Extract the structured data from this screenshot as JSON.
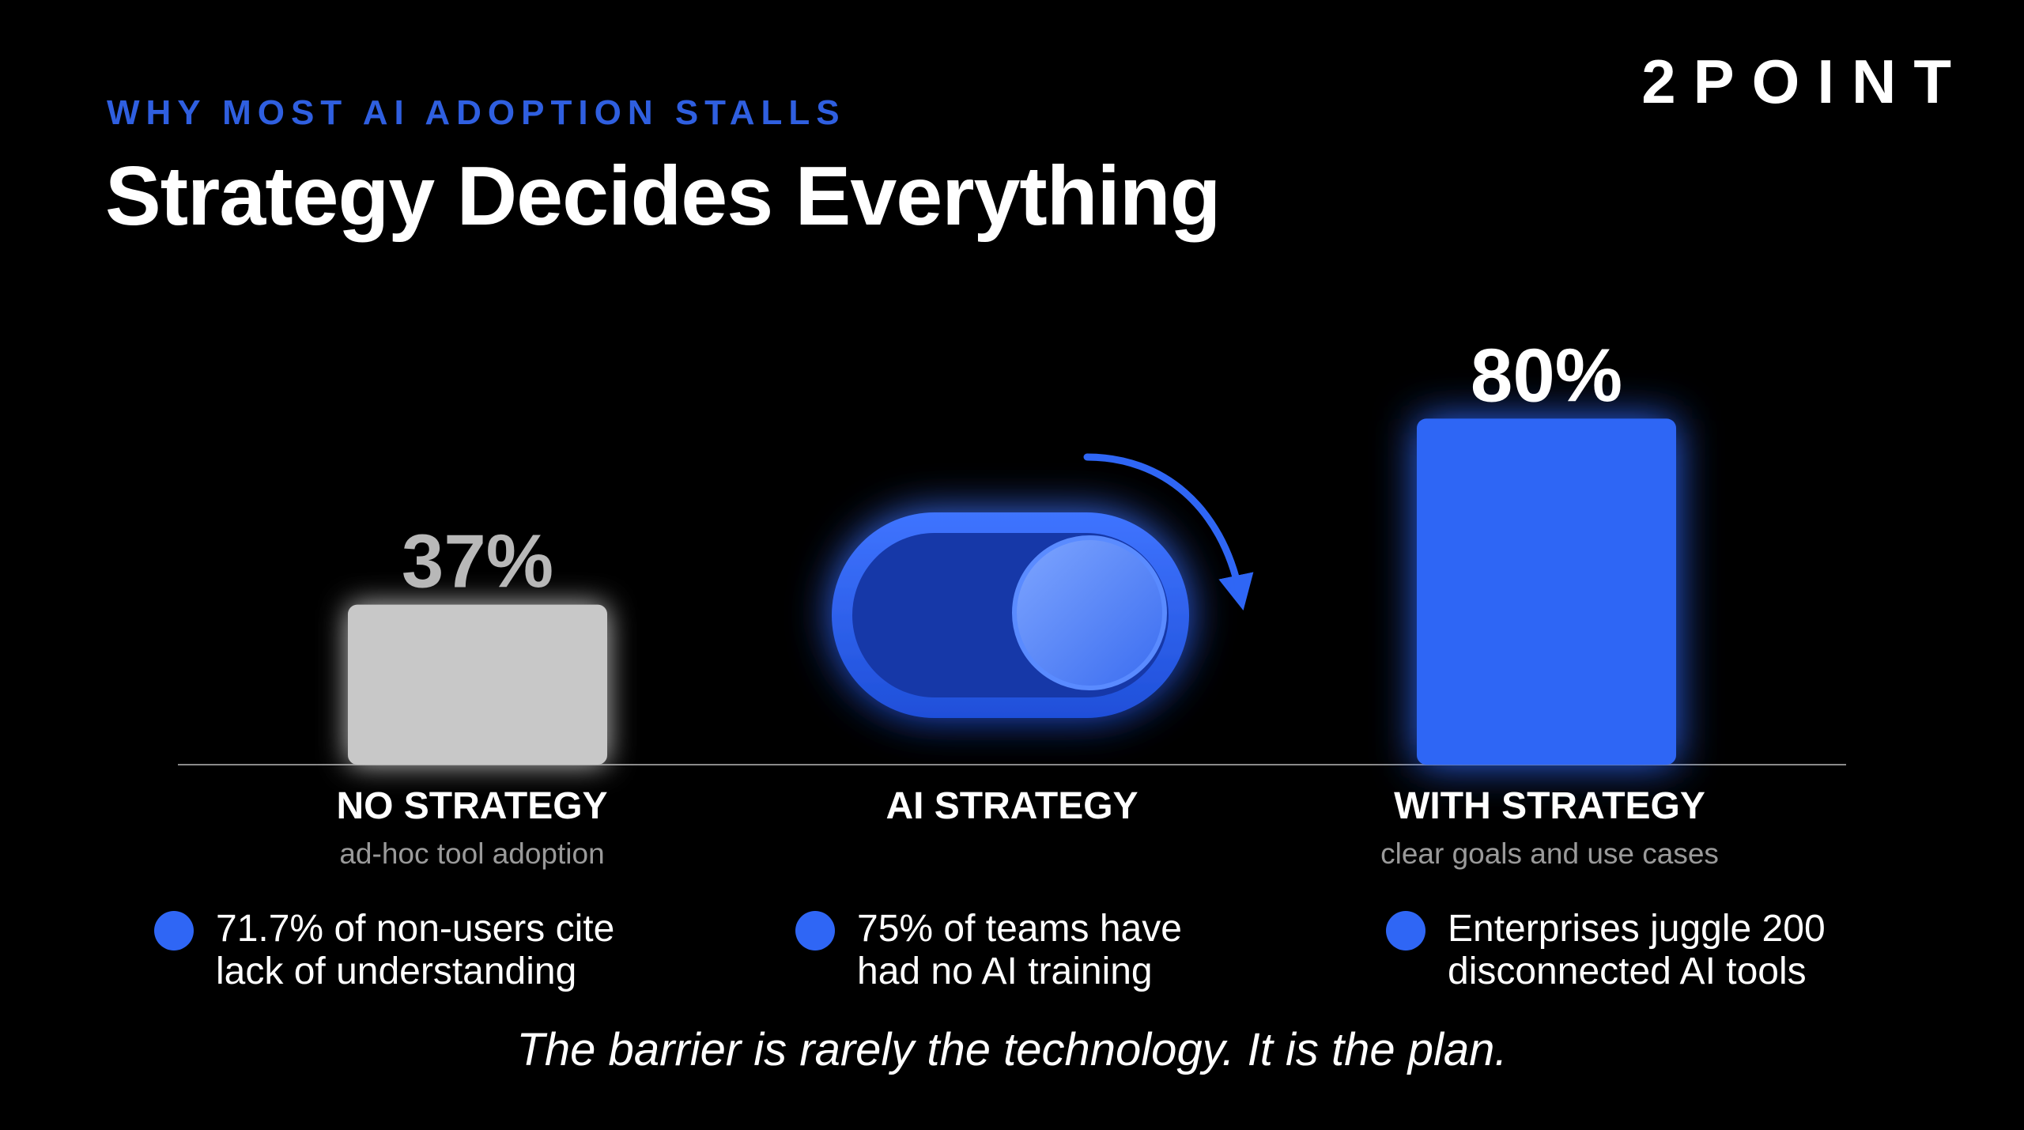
{
  "header": {
    "eyebrow": "WHY MOST AI ADOPTION STALLS",
    "title": "Strategy Decides Everything",
    "logo": "2POINT"
  },
  "colors": {
    "accent": "#2f66f5",
    "eyebrow": "#2f5fe0",
    "no_strategy_bar": "#c8c8c8",
    "background": "#000000"
  },
  "chart_data": {
    "type": "bar",
    "categories": [
      "NO STRATEGY",
      "WITH STRATEGY"
    ],
    "values": [
      37,
      80
    ],
    "value_labels": [
      "37%",
      "80%"
    ],
    "ylim": [
      0,
      100
    ],
    "grid": false,
    "bar_colors": [
      "#c8c8c8",
      "#2f66f5"
    ],
    "middle_graphic": {
      "label": "AI STRATEGY",
      "icon": "toggle-switch-on-icon"
    }
  },
  "categories": [
    {
      "label": "NO STRATEGY",
      "sub": "ad-hoc tool adoption"
    },
    {
      "label": "AI STRATEGY",
      "sub": ""
    },
    {
      "label": "WITH STRATEGY",
      "sub": "clear goals and use cases"
    }
  ],
  "bullets": [
    {
      "text": "71.7% of non-users cite\nlack of understanding"
    },
    {
      "text": "75% of teams have\nhad no AI training"
    },
    {
      "text": "Enterprises juggle 200\ndisconnected AI tools"
    }
  ],
  "tagline": "The barrier is rarely the technology. It is the plan."
}
